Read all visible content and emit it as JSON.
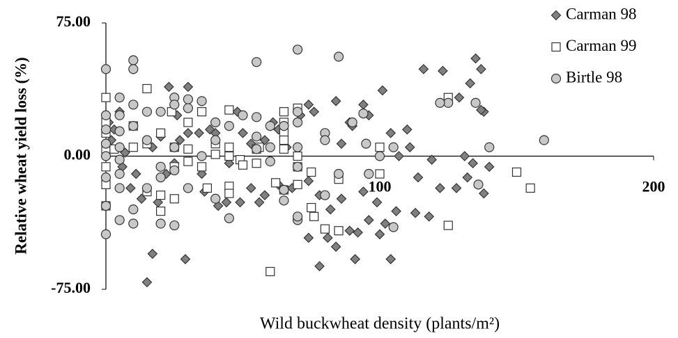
{
  "chart_data": {
    "type": "scatter",
    "x_label": "Wild buckwheat density (plants/m²)",
    "y_label": "Relative wheat yield loss (%)",
    "xlim": [
      0,
      200
    ],
    "xticks": [
      100,
      200
    ],
    "ylim": [
      -75,
      75
    ],
    "yticks": [
      {
        "value": -75,
        "label": "-75.00"
      },
      {
        "value": 0,
        "label": "0.00"
      },
      {
        "value": 75,
        "label": "75.00"
      }
    ],
    "legend": "top-right",
    "series": [
      {
        "name": "Carman 98",
        "marker": "diamond",
        "color": "#808080",
        "x": [
          15,
          17,
          29,
          23,
          30,
          78,
          84,
          91,
          104,
          100,
          92,
          89,
          81,
          74,
          116,
          123,
          135,
          137,
          133,
          129,
          138,
          137,
          101,
          94,
          84,
          74,
          76,
          89,
          96,
          104,
          110,
          111,
          114,
          118,
          122,
          128,
          131,
          134,
          138,
          140,
          132,
          113,
          106,
          102,
          96,
          99,
          94,
          86,
          82,
          78,
          74,
          68,
          63,
          58,
          56,
          53,
          49,
          44,
          41,
          36,
          35,
          34,
          38,
          40,
          45,
          48,
          50,
          53,
          58,
          61,
          63,
          66,
          70,
          71,
          86,
          90,
          107,
          119,
          3,
          2,
          5,
          7,
          6,
          9,
          11,
          13,
          20,
          22,
          25,
          26,
          27,
          5,
          1,
          17,
          19,
          30
        ],
        "values": [
          -71,
          -55,
          -58,
          39,
          39,
          -62,
          -51,
          -58,
          -58,
          -44,
          -43,
          -42,
          -46,
          -46,
          49,
          48,
          55,
          49,
          41,
          33,
          25,
          26,
          37,
          29,
          31,
          29,
          25,
          19,
          23,
          13,
          15,
          5,
          -12,
          -34,
          -18,
          -18,
          0,
          -4,
          -21,
          -6,
          -12,
          -32,
          -31,
          -38,
          -36,
          -26,
          -20,
          -24,
          -30,
          -22,
          -14,
          -18,
          -16,
          -22,
          -26,
          -18,
          -26,
          -26,
          -28,
          -20,
          -10,
          13,
          15,
          13,
          -4,
          25,
          13,
          7,
          9,
          19,
          15,
          5,
          25,
          23,
          7,
          17,
          0,
          -2,
          15,
          9,
          5,
          2,
          -6,
          -18,
          -10,
          -24,
          11,
          -10,
          -4,
          23,
          9,
          25,
          19,
          5,
          -26,
          13
        ]
      },
      {
        "name": "Carman 99",
        "marker": "square",
        "color": "#ffffff",
        "x": [
          60,
          125,
          150,
          155,
          0,
          15,
          24,
          35,
          45,
          65,
          65,
          65,
          65,
          70,
          76,
          80,
          85,
          85,
          75,
          75,
          70,
          65,
          62,
          100,
          100,
          125,
          15,
          20,
          20,
          25,
          25,
          30,
          35,
          37,
          45,
          45,
          45,
          45,
          49,
          50,
          55,
          55,
          0,
          0,
          0,
          0,
          0,
          0,
          3,
          10,
          10,
          15,
          20,
          30,
          40,
          40,
          70,
          70,
          65,
          56,
          30,
          25
        ],
        "values": [
          -65,
          -39,
          -9,
          -18,
          33,
          38,
          25,
          25,
          26,
          25,
          19,
          13,
          9,
          27,
          -34,
          -41,
          -42,
          -13,
          -9,
          -29,
          -16,
          -19,
          -15,
          -10,
          5,
          33,
          -20,
          -22,
          -31,
          -24,
          -6,
          4,
          -6,
          -18,
          0,
          5,
          -17,
          -21,
          -2,
          -5,
          -4,
          4,
          19,
          13,
          4,
          -6,
          -16,
          -28,
          4,
          17,
          5,
          7,
          13,
          -3,
          1,
          7,
          0,
          -6,
          4,
          5,
          19,
          5
        ]
      },
      {
        "name": "Birtle 98",
        "marker": "circle",
        "color": "#c8c8c8",
        "x": [
          0,
          10,
          10,
          55,
          70,
          85,
          160,
          140,
          135,
          136,
          125,
          122,
          105,
          100,
          96,
          94,
          95,
          105,
          90,
          85,
          80,
          80,
          80,
          70,
          70,
          70,
          70,
          70,
          70,
          65,
          65,
          65,
          60,
          60,
          60,
          55,
          55,
          55,
          50,
          45,
          45,
          40,
          40,
          40,
          35,
          30,
          30,
          25,
          25,
          25,
          25,
          25,
          20,
          20,
          20,
          20,
          15,
          15,
          10,
          10,
          10,
          10,
          5,
          5,
          5,
          5,
          5,
          5,
          5,
          5,
          0,
          0,
          0,
          0,
          0,
          0,
          0,
          30,
          35,
          15
        ],
        "values": [
          49,
          54,
          49,
          53,
          60,
          56,
          9,
          5,
          30,
          -16,
          30,
          30,
          -40,
          0,
          -10,
          24,
          7,
          5,
          19,
          -10,
          13,
          9,
          -22,
          -36,
          25,
          19,
          5,
          -6,
          -34,
          17,
          -19,
          -25,
          17,
          5,
          -3,
          22,
          11,
          4,
          23,
          17,
          -35,
          19,
          9,
          -24,
          31,
          32,
          27,
          33,
          29,
          5,
          -39,
          -8,
          25,
          -6,
          -12,
          -38,
          25,
          9,
          29,
          17,
          -30,
          -38,
          33,
          23,
          14,
          5,
          -2,
          -10,
          -18,
          -36,
          23,
          15,
          7,
          0,
          -12,
          -28,
          -44,
          -18,
          0,
          -18
        ]
      }
    ]
  }
}
